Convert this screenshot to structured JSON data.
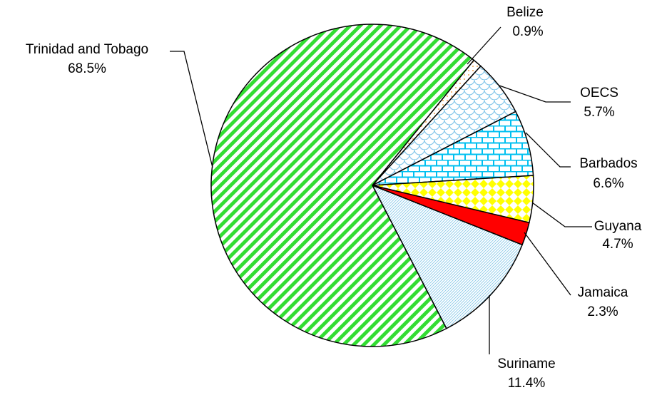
{
  "chart_data": {
    "type": "pie",
    "categories": [
      "Belize",
      "OECS",
      "Barbados",
      "Guyana",
      "Jamaica",
      "Suriname",
      "Trinidad and Tobago"
    ],
    "values": [
      0.9,
      5.7,
      6.6,
      4.7,
      2.3,
      11.4,
      68.5
    ],
    "value_labels": [
      "0.9%",
      "5.7%",
      "6.6%",
      "4.7%",
      "2.3%",
      "11.4%",
      "68.5%"
    ],
    "colors": [
      "#f0a050",
      "#87c8ea",
      "#00c0f0",
      "#ffff00",
      "#ff0000",
      "#87c8ea",
      "#33dd33"
    ]
  }
}
